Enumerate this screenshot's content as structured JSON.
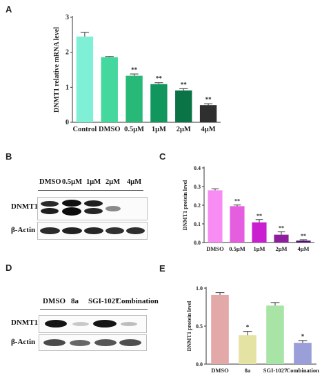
{
  "panels": {
    "A": "A",
    "B": "B",
    "C": "C",
    "D": "D",
    "E": "E"
  },
  "blot_b": {
    "lanes": [
      "DMSO",
      "0.5μM",
      "1μM",
      "2μM",
      "4μM"
    ],
    "rows": [
      "DNMT1",
      "β-Actin"
    ]
  },
  "blot_d": {
    "lanes": [
      "DMSO",
      "8a",
      "SGI-1027",
      "Combination"
    ],
    "rows": [
      "DNMT1",
      "β-Actin"
    ]
  },
  "chart_data": [
    {
      "panel": "A",
      "type": "bar",
      "categories": [
        "Control",
        "DMSO",
        "0.5μM",
        "1μM",
        "2μM",
        "4μM"
      ],
      "values": [
        2.45,
        1.86,
        1.33,
        1.09,
        0.91,
        0.49
      ],
      "errors": [
        0.12,
        0.02,
        0.05,
        0.04,
        0.05,
        0.04
      ],
      "significance": [
        "",
        "",
        "**",
        "**",
        "**",
        "**"
      ],
      "colors": [
        "#7ff0d6",
        "#45d89e",
        "#28b978",
        "#11975e",
        "#0b7447",
        "#2f2f2f"
      ],
      "ylabel": "DNMT1 relative mRNA level",
      "ylim": [
        0,
        3
      ],
      "yticks": [
        0,
        1,
        2,
        3
      ]
    },
    {
      "panel": "C",
      "type": "bar",
      "categories": [
        "DMSO",
        "0.5μM",
        "1μM",
        "2μM",
        "4μM"
      ],
      "values": [
        0.28,
        0.195,
        0.108,
        0.042,
        0.01
      ],
      "errors": [
        0.008,
        0.006,
        0.015,
        0.015,
        0.005
      ],
      "significance": [
        "",
        "**",
        "**",
        "**",
        "**"
      ],
      "colors": [
        "#f78cf2",
        "#e65ee0",
        "#c91fd1",
        "#8d1f9c",
        "#511570"
      ],
      "ylabel": "DNMT1 protein level",
      "ylim": [
        0,
        0.4
      ],
      "yticks": [
        "0.0",
        "0.1",
        "0.2",
        "0.3",
        "0.4"
      ]
    },
    {
      "panel": "E",
      "type": "bar",
      "categories": [
        "DMSO",
        "8a",
        "SGI-1027",
        "Combination"
      ],
      "values": [
        0.91,
        0.38,
        0.77,
        0.28
      ],
      "errors": [
        0.03,
        0.05,
        0.04,
        0.03
      ],
      "significance": [
        "",
        "*",
        "",
        "*"
      ],
      "colors": [
        "#e3a8a8",
        "#e4e3a3",
        "#a9e4a7",
        "#9a9ed9"
      ],
      "ylabel": "DNMT1 protein level",
      "ylim": [
        0,
        1.0
      ],
      "yticks": [
        "0.0",
        "0.5",
        "1.0"
      ]
    }
  ]
}
